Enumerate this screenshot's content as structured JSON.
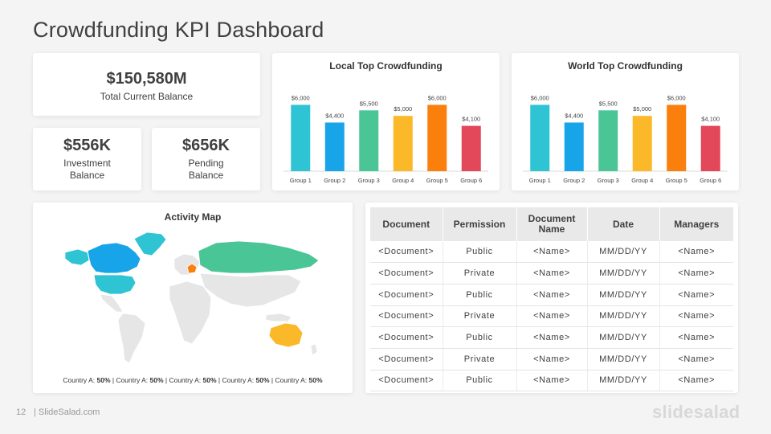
{
  "title": "Crowdfunding KPI Dashboard",
  "kpis": {
    "total": {
      "value": "$150,580M",
      "label": "Total Current Balance"
    },
    "investment": {
      "value": "$556K",
      "label": "Investment\nBalance"
    },
    "pending": {
      "value": "$656K",
      "label": "Pending\nBalance"
    }
  },
  "chart_data": [
    {
      "type": "bar",
      "title": "Local Top Crowdfunding",
      "categories": [
        "Group 1",
        "Group 2",
        "Group 3",
        "Group 4",
        "Group 5",
        "Group 6"
      ],
      "values": [
        6000,
        4400,
        5500,
        5000,
        6000,
        4100
      ],
      "data_labels": [
        "$6,000",
        "$4,400",
        "$5,500",
        "$5,000",
        "$6,000",
        "$4,100"
      ],
      "colors": [
        "#2ec4d3",
        "#18a4e8",
        "#4ac596",
        "#fbb829",
        "#fb7f0d",
        "#e2475a"
      ],
      "ylim": [
        0,
        7000
      ],
      "grid": false,
      "xlabel": "",
      "ylabel": ""
    },
    {
      "type": "bar",
      "title": "World Top Crowdfunding",
      "categories": [
        "Group 1",
        "Group 2",
        "Group 3",
        "Group 4",
        "Group 5",
        "Group 6"
      ],
      "values": [
        6000,
        4400,
        5500,
        5000,
        6000,
        4100
      ],
      "data_labels": [
        "$6,000",
        "$4,400",
        "$5,500",
        "$5,000",
        "$6,000",
        "$4,100"
      ],
      "colors": [
        "#2ec4d3",
        "#18a4e8",
        "#4ac596",
        "#fbb829",
        "#fb7f0d",
        "#e2475a"
      ],
      "ylim": [
        0,
        7000
      ],
      "grid": false,
      "xlabel": "",
      "ylabel": ""
    }
  ],
  "map": {
    "title": "Activity Map",
    "legend": [
      {
        "country": "Country A:",
        "pct": "50%"
      },
      {
        "country": "Country A:",
        "pct": "50%"
      },
      {
        "country": "Country A:",
        "pct": "50%"
      },
      {
        "country": "Country A:",
        "pct": "50%"
      },
      {
        "country": "Country A:",
        "pct": "50%"
      }
    ],
    "colors": {
      "base": "#e6e6e6",
      "canada": "#18a4e8",
      "greenland_alaska": "#2ec4d3",
      "usa": "#2ec4d3",
      "russia": "#4ac596",
      "australia": "#fbb829",
      "europe": "#fb7f0d"
    }
  },
  "table": {
    "headers": [
      "Document",
      "Permission",
      "Document\nName",
      "Date",
      "Managers"
    ],
    "rows": [
      [
        "<Document>",
        "Public",
        "<Name>",
        "MM/DD/YY",
        "<Name>"
      ],
      [
        "<Document>",
        "Private",
        "<Name>",
        "MM/DD/YY",
        "<Name>"
      ],
      [
        "<Document>",
        "Public",
        "<Name>",
        "MM/DD/YY",
        "<Name>"
      ],
      [
        "<Document>",
        "Private",
        "<Name>",
        "MM/DD/YY",
        "<Name>"
      ],
      [
        "<Document>",
        "Public",
        "<Name>",
        "MM/DD/YY",
        "<Name>"
      ],
      [
        "<Document>",
        "Private",
        "<Name>",
        "MM/DD/YY",
        "<Name>"
      ],
      [
        "<Document>",
        "Public",
        "<Name>",
        "MM/DD/YY",
        "<Name>"
      ]
    ]
  },
  "footer": {
    "page": "12",
    "site": "| SlideSalad.com",
    "brand": "slidesalad"
  }
}
